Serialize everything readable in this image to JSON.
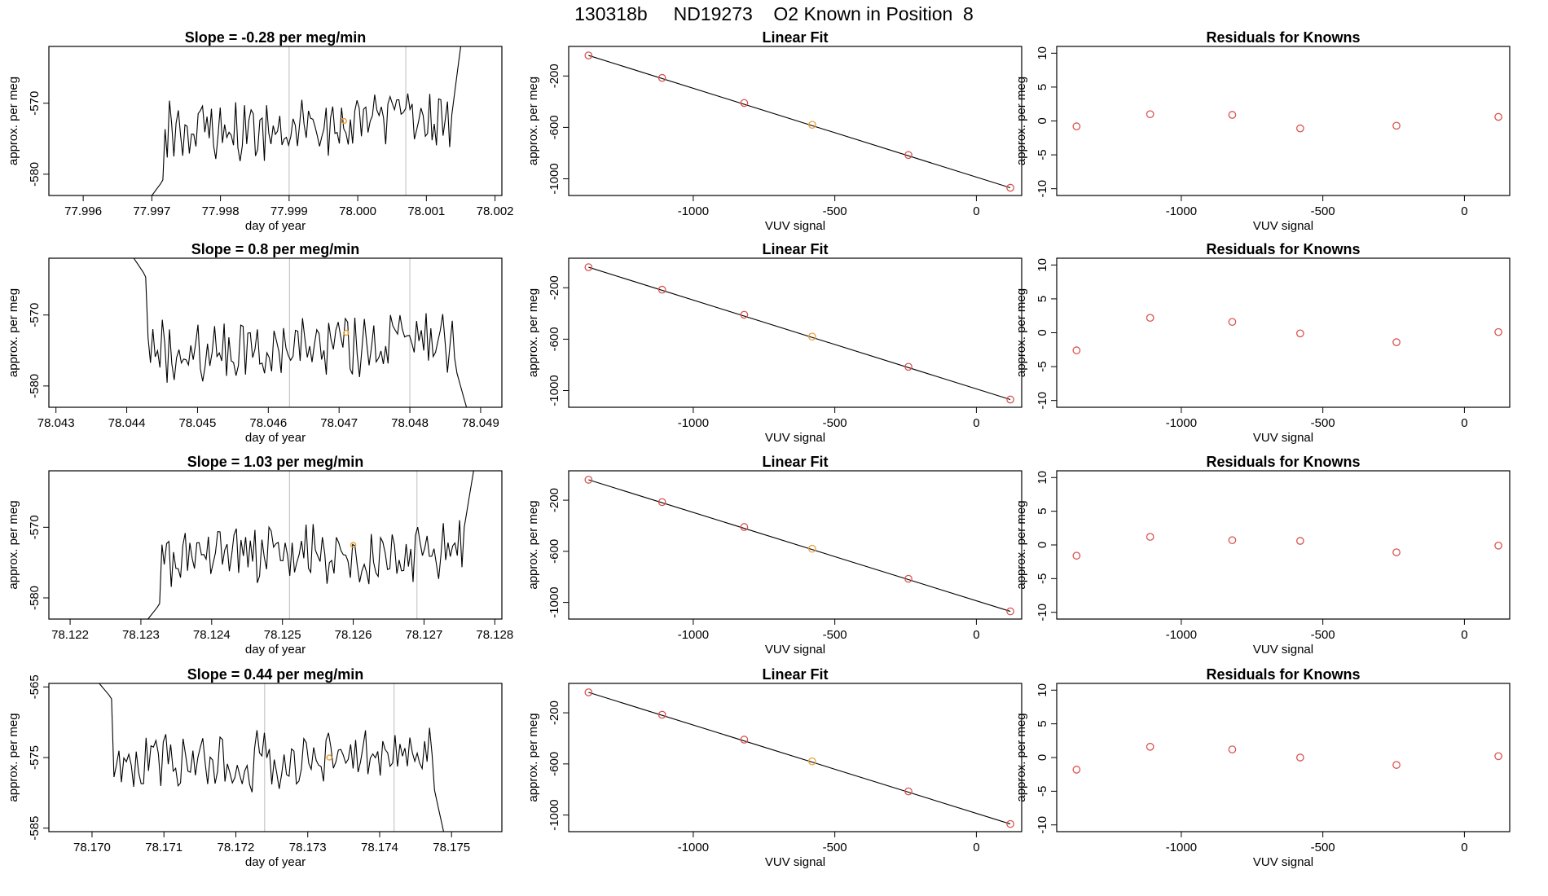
{
  "title": "130318b     ND19273    O2 Known in Position  8",
  "colors": {
    "line": "#000000",
    "known": "#d9534f",
    "highlight": "#e8a33d",
    "vline": "#c8c8c8"
  },
  "chart_data": [
    {
      "type": "line",
      "title": "Slope =  -0.28  per meg/min",
      "xlabel": "day of year",
      "ylabel": "approx. per meg",
      "xlim": [
        77.9955,
        78.0021
      ],
      "ylim": [
        -583,
        -562
      ],
      "xticks": [
        77.996,
        77.997,
        77.998,
        77.999,
        78.0,
        78.001,
        78.002
      ],
      "xtick_labels": [
        "77.996",
        "77.997",
        "77.998",
        "77.999",
        "78.000",
        "78.001",
        "78.002"
      ],
      "yticks": [
        -580,
        -570
      ],
      "ytick_labels": [
        "-580",
        "-570"
      ],
      "start": 77.997,
      "end": 78.0015,
      "base": -573.3,
      "entry": [
        -583,
        -580.5
      ],
      "exit": [
        -574,
        -562
      ],
      "vlines": [
        77.999,
        78.0007
      ],
      "highlight_point": {
        "x": 77.9998,
        "y": -572.5
      }
    },
    {
      "type": "scatter",
      "title": "Linear Fit",
      "xlabel": "VUV signal",
      "ylabel": "approx. per meg",
      "xlim": [
        -1440,
        160
      ],
      "ylim": [
        -1130,
        30
      ],
      "xticks": [
        -1000,
        -500,
        0
      ],
      "xtick_labels": [
        "-1000",
        "-500",
        "0"
      ],
      "yticks": [
        -1000,
        -600,
        -200
      ],
      "ytick_labels": [
        "-1000",
        "-600",
        "-200"
      ],
      "x": [
        -1370,
        -1110,
        -820,
        -580,
        -240,
        120
      ],
      "y": [
        -40,
        -215,
        -410,
        -580,
        -815,
        -1070
      ],
      "highlight_index": 3,
      "fit_line": {
        "x": [
          -1370,
          120
        ],
        "y": [
          -40,
          -1070
        ]
      }
    },
    {
      "type": "scatter",
      "title": "Residuals for Knowns",
      "xlabel": "VUV signal",
      "ylabel": "approx. per meg",
      "xlim": [
        -1440,
        160
      ],
      "ylim": [
        -11,
        11
      ],
      "xticks": [
        -1000,
        -500,
        0
      ],
      "xtick_labels": [
        "-1000",
        "-500",
        "0"
      ],
      "yticks": [
        -10,
        -5,
        0,
        5,
        10
      ],
      "ytick_labels": [
        "-10",
        "-5",
        "0",
        "5",
        "10"
      ],
      "x": [
        -1370,
        -1110,
        -820,
        -580,
        -240,
        120
      ],
      "y": [
        -0.8,
        1.0,
        0.9,
        -1.1,
        -0.7,
        0.6
      ]
    },
    {
      "type": "line",
      "title": "Slope =  0.8  per meg/min",
      "xlabel": "day of year",
      "ylabel": "approx. per meg",
      "xlim": [
        78.0429,
        78.0493
      ],
      "ylim": [
        -583,
        -562
      ],
      "xticks": [
        78.043,
        78.044,
        78.045,
        78.046,
        78.047,
        78.048,
        78.049
      ],
      "xtick_labels": [
        "78.043",
        "78.044",
        "78.045",
        "78.046",
        "78.047",
        "78.048",
        "78.049"
      ],
      "yticks": [
        -580,
        -570
      ],
      "ytick_labels": [
        "-580",
        "-570"
      ],
      "start": 78.0441,
      "end": 78.0488,
      "base": -574.5,
      "entry": [
        -562,
        -565
      ],
      "exit": [
        -577,
        -583
      ],
      "vlines": [
        78.0463,
        78.048
      ],
      "highlight_point": {
        "x": 78.0471,
        "y": -572.5
      }
    },
    {
      "type": "scatter",
      "title": "Linear Fit",
      "xlabel": "VUV signal",
      "ylabel": "approx. per meg",
      "xlim": [
        -1440,
        160
      ],
      "ylim": [
        -1130,
        30
      ],
      "xticks": [
        -1000,
        -500,
        0
      ],
      "xtick_labels": [
        "-1000",
        "-500",
        "0"
      ],
      "yticks": [
        -1000,
        -600,
        -200
      ],
      "ytick_labels": [
        "-1000",
        "-600",
        "-200"
      ],
      "x": [
        -1370,
        -1110,
        -820,
        -580,
        -240,
        120
      ],
      "y": [
        -40,
        -215,
        -410,
        -580,
        -815,
        -1070
      ],
      "highlight_index": 3,
      "fit_line": {
        "x": [
          -1370,
          120
        ],
        "y": [
          -40,
          -1070
        ]
      }
    },
    {
      "type": "scatter",
      "title": "Residuals for Knowns",
      "xlabel": "VUV signal",
      "ylabel": "approx. per meg",
      "xlim": [
        -1440,
        160
      ],
      "ylim": [
        -11,
        11
      ],
      "xticks": [
        -1000,
        -500,
        0
      ],
      "xtick_labels": [
        "-1000",
        "-500",
        "0"
      ],
      "yticks": [
        -10,
        -5,
        0,
        5,
        10
      ],
      "ytick_labels": [
        "-10",
        "-5",
        "0",
        "5",
        "10"
      ],
      "x": [
        -1370,
        -1110,
        -820,
        -580,
        -240,
        120
      ],
      "y": [
        -2.6,
        2.2,
        1.6,
        -0.1,
        -1.4,
        0.1
      ]
    },
    {
      "type": "line",
      "title": "Slope =  1.03  per meg/min",
      "xlabel": "day of year",
      "ylabel": "approx. per meg",
      "xlim": [
        78.1217,
        78.1281
      ],
      "ylim": [
        -583,
        -562
      ],
      "xticks": [
        78.122,
        78.123,
        78.124,
        78.125,
        78.126,
        78.127,
        78.128
      ],
      "xtick_labels": [
        "78.122",
        "78.123",
        "78.124",
        "78.125",
        "78.126",
        "78.127",
        "78.128"
      ],
      "yticks": [
        -580,
        -570
      ],
      "ytick_labels": [
        "-580",
        "-570"
      ],
      "start": 78.1231,
      "end": 78.1277,
      "base": -573.8,
      "entry": [
        -583,
        -580.5
      ],
      "exit": [
        -572,
        -562
      ],
      "vlines": [
        78.1251,
        78.1269
      ],
      "highlight_point": {
        "x": 78.126,
        "y": -572.5
      }
    },
    {
      "type": "scatter",
      "title": "Linear Fit",
      "xlabel": "VUV signal",
      "ylabel": "approx. per meg",
      "xlim": [
        -1440,
        160
      ],
      "ylim": [
        -1130,
        30
      ],
      "xticks": [
        -1000,
        -500,
        0
      ],
      "xtick_labels": [
        "-1000",
        "-500",
        "0"
      ],
      "yticks": [
        -1000,
        -600,
        -200
      ],
      "ytick_labels": [
        "-1000",
        "-600",
        "-200"
      ],
      "x": [
        -1370,
        -1110,
        -820,
        -580,
        -240,
        120
      ],
      "y": [
        -40,
        -215,
        -410,
        -580,
        -815,
        -1070
      ],
      "highlight_index": 3,
      "fit_line": {
        "x": [
          -1370,
          120
        ],
        "y": [
          -40,
          -1070
        ]
      }
    },
    {
      "type": "scatter",
      "title": "Residuals for Knowns",
      "xlabel": "VUV signal",
      "ylabel": "approx. per meg",
      "xlim": [
        -1440,
        160
      ],
      "ylim": [
        -11,
        11
      ],
      "xticks": [
        -1000,
        -500,
        0
      ],
      "xtick_labels": [
        "-1000",
        "-500",
        "0"
      ],
      "yticks": [
        -10,
        -5,
        0,
        5,
        10
      ],
      "ytick_labels": [
        "-10",
        "-5",
        "0",
        "5",
        "10"
      ],
      "x": [
        -1370,
        -1110,
        -820,
        -580,
        -240,
        120
      ],
      "y": [
        -1.6,
        1.2,
        0.7,
        0.6,
        -1.1,
        -0.1
      ]
    },
    {
      "type": "line",
      "title": "Slope =  0.44  per meg/min",
      "xlabel": "day of year",
      "ylabel": "approx. per meg",
      "xlim": [
        78.1694,
        78.1757
      ],
      "ylim": [
        -585.5,
        -564.5
      ],
      "xticks": [
        78.17,
        78.171,
        78.172,
        78.173,
        78.174,
        78.175
      ],
      "xtick_labels": [
        "78.170",
        "78.171",
        "78.172",
        "78.173",
        "78.174",
        "78.175"
      ],
      "yticks": [
        -585,
        -575,
        -565
      ],
      "ytick_labels": [
        "-585",
        "-575",
        "-565"
      ],
      "start": 78.1701,
      "end": 78.1749,
      "base": -575.2,
      "entry": [
        -564.5,
        -567
      ],
      "exit": [
        -578,
        -586
      ],
      "vlines": [
        78.1724,
        78.1742
      ],
      "highlight_point": {
        "x": 78.1733,
        "y": -575.0
      }
    },
    {
      "type": "scatter",
      "title": "Linear Fit",
      "xlabel": "VUV signal",
      "ylabel": "approx. per meg",
      "xlim": [
        -1440,
        160
      ],
      "ylim": [
        -1130,
        30
      ],
      "xticks": [
        -1000,
        -500,
        0
      ],
      "xtick_labels": [
        "-1000",
        "-500",
        "0"
      ],
      "yticks": [
        -1000,
        -600,
        -200
      ],
      "ytick_labels": [
        "-1000",
        "-600",
        "-200"
      ],
      "x": [
        -1370,
        -1110,
        -820,
        -580,
        -240,
        120
      ],
      "y": [
        -40,
        -215,
        -410,
        -580,
        -815,
        -1070
      ],
      "highlight_index": 3,
      "fit_line": {
        "x": [
          -1370,
          120
        ],
        "y": [
          -40,
          -1070
        ]
      }
    },
    {
      "type": "scatter",
      "title": "Residuals for Knowns",
      "xlabel": "VUV signal",
      "ylabel": "approx. per meg",
      "xlim": [
        -1440,
        160
      ],
      "ylim": [
        -11,
        11
      ],
      "xticks": [
        -1000,
        -500,
        0
      ],
      "xtick_labels": [
        "-1000",
        "-500",
        "0"
      ],
      "yticks": [
        -10,
        -5,
        0,
        5,
        10
      ],
      "ytick_labels": [
        "-10",
        "-5",
        "0",
        "5",
        "10"
      ],
      "x": [
        -1370,
        -1110,
        -820,
        -580,
        -240,
        120
      ],
      "y": [
        -1.8,
        1.6,
        1.2,
        0.0,
        -1.1,
        0.2
      ]
    }
  ]
}
